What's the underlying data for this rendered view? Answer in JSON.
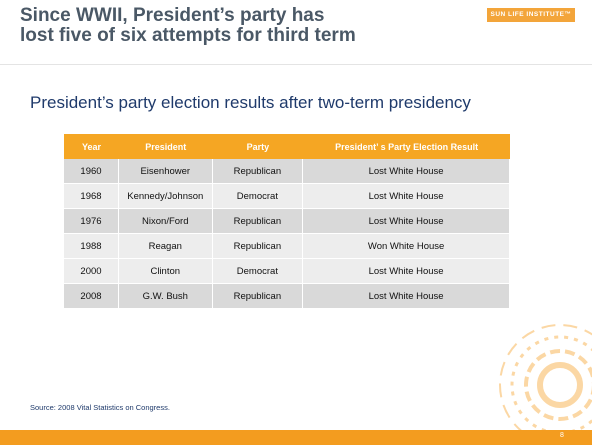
{
  "header": {
    "title_lines": [
      "Since WWII, President’s party has",
      "lost five of six attempts for third term"
    ],
    "logo": "SUN LIFE INSTITUTE™"
  },
  "subtitle": "President’s party election results after two-term presidency",
  "table": {
    "columns": [
      "Year",
      "President",
      "Party",
      "President’ s Party Election Result"
    ],
    "rows": [
      [
        "1960",
        "Eisenhower",
        "Republican",
        "Lost White House"
      ],
      [
        "1968",
        "Kennedy/Johnson",
        "Democrat",
        "Lost White House"
      ],
      [
        "1976",
        "Nixon/Ford",
        "Republican",
        "Lost White House"
      ],
      [
        "1988",
        "Reagan",
        "Republican",
        "Won White House"
      ],
      [
        "2000",
        "Clinton",
        "Democrat",
        "Lost White House"
      ],
      [
        "2008",
        "G.W. Bush",
        "Republican",
        "Lost White House"
      ]
    ]
  },
  "source": "Source: 2008 Vital Statistics on Congress.",
  "page_number": "8"
}
